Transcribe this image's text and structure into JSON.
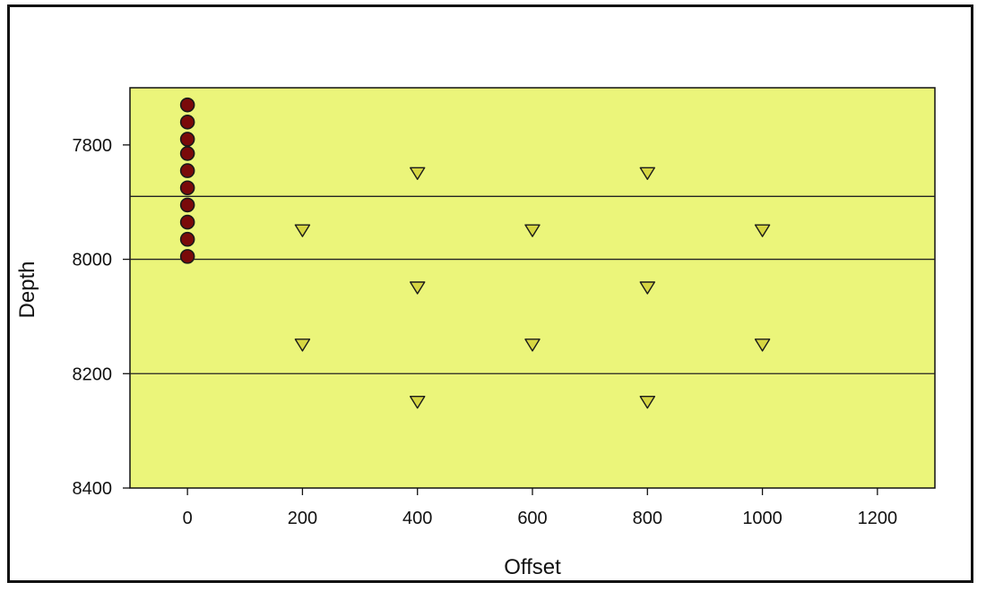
{
  "chart_data": {
    "type": "scatter",
    "title": "",
    "xlabel": "Offset",
    "ylabel": "Depth",
    "xlim": [
      -100,
      1300
    ],
    "ylim": [
      8400,
      7700
    ],
    "y_inverted": true,
    "x_ticks": [
      0,
      200,
      400,
      600,
      800,
      1000,
      1200
    ],
    "y_ticks": [
      7800,
      8000,
      8200,
      8400
    ],
    "grid": false,
    "reference_lines_y": [
      7890,
      8000,
      8200
    ],
    "colors": {
      "plot_background": "#ebf57a",
      "page_background": "#ffffff",
      "reference_line": "#222222",
      "circle_fill": "#7a0a0a",
      "triangle_fill": "#d6d642",
      "marker_stroke": "#1a1a1a"
    },
    "series": [
      {
        "marker": "circle",
        "points": [
          {
            "x": 0,
            "y": 7730
          },
          {
            "x": 0,
            "y": 7760
          },
          {
            "x": 0,
            "y": 7790
          },
          {
            "x": 0,
            "y": 7815
          },
          {
            "x": 0,
            "y": 7845
          },
          {
            "x": 0,
            "y": 7875
          },
          {
            "x": 0,
            "y": 7905
          },
          {
            "x": 0,
            "y": 7935
          },
          {
            "x": 0,
            "y": 7965
          },
          {
            "x": 0,
            "y": 7995
          }
        ]
      },
      {
        "marker": "triangle-down",
        "points": [
          {
            "x": 400,
            "y": 7850
          },
          {
            "x": 800,
            "y": 7850
          },
          {
            "x": 200,
            "y": 7950
          },
          {
            "x": 600,
            "y": 7950
          },
          {
            "x": 1000,
            "y": 7950
          },
          {
            "x": 400,
            "y": 8050
          },
          {
            "x": 800,
            "y": 8050
          },
          {
            "x": 200,
            "y": 8150
          },
          {
            "x": 600,
            "y": 8150
          },
          {
            "x": 1000,
            "y": 8150
          },
          {
            "x": 400,
            "y": 8250
          },
          {
            "x": 800,
            "y": 8250
          }
        ]
      }
    ]
  }
}
